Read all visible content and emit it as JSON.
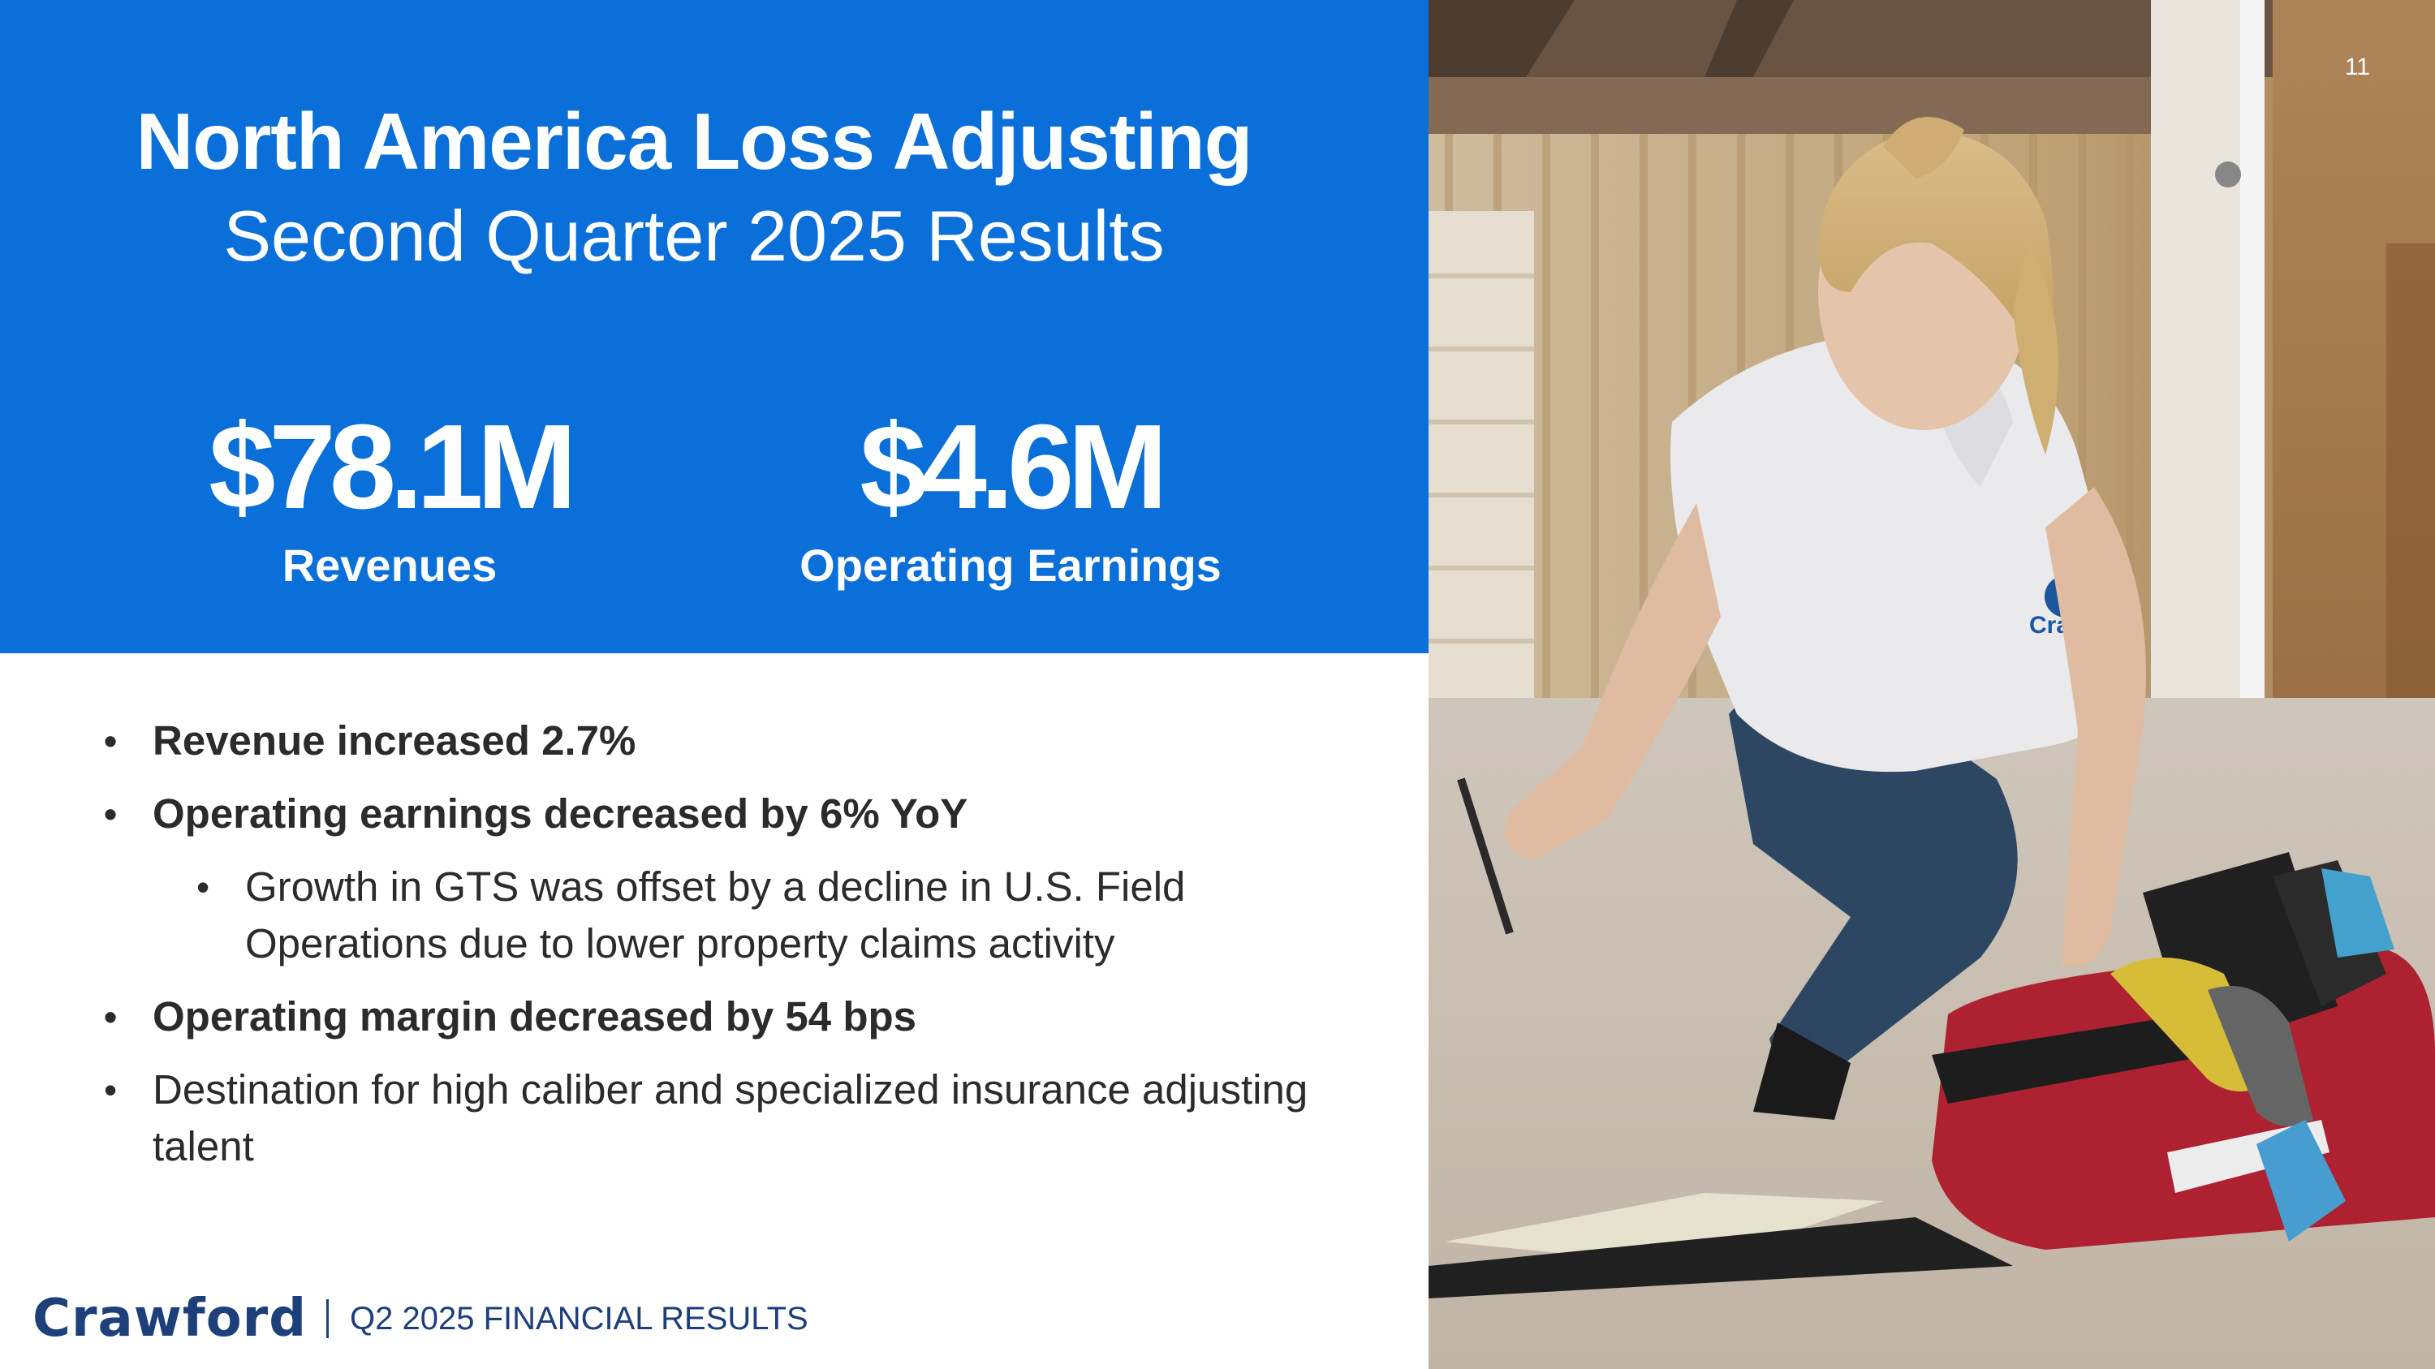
{
  "header": {
    "title": "North America Loss Adjusting",
    "subtitle": "Second Quarter 2025 Results"
  },
  "metrics": [
    {
      "value": "$78.1M",
      "label": "Revenues"
    },
    {
      "value": "$4.6M",
      "label": "Operating Earnings"
    }
  ],
  "bullets": [
    {
      "text": "Revenue increased 2.7%"
    },
    {
      "text": "Operating earnings decreased by 6% YoY"
    },
    {
      "text": "Growth in GTS was offset by a decline in U.S. Field Operations due to lower property claims activity"
    },
    {
      "text": "Operating margin decreased by 54 bps"
    },
    {
      "text": "Destination for high caliber and specialized insurance adjusting talent"
    }
  ],
  "footer": {
    "logo": "Crawford",
    "text": "Q2 2025 FINANCIAL RESULTS"
  },
  "photo": {
    "shirt_logo": "Crawf"
  },
  "page_number": "11",
  "colors": {
    "brand_blue": "#0a6fd8",
    "navy": "#1d3f7a",
    "text": "#2b2b2b"
  }
}
